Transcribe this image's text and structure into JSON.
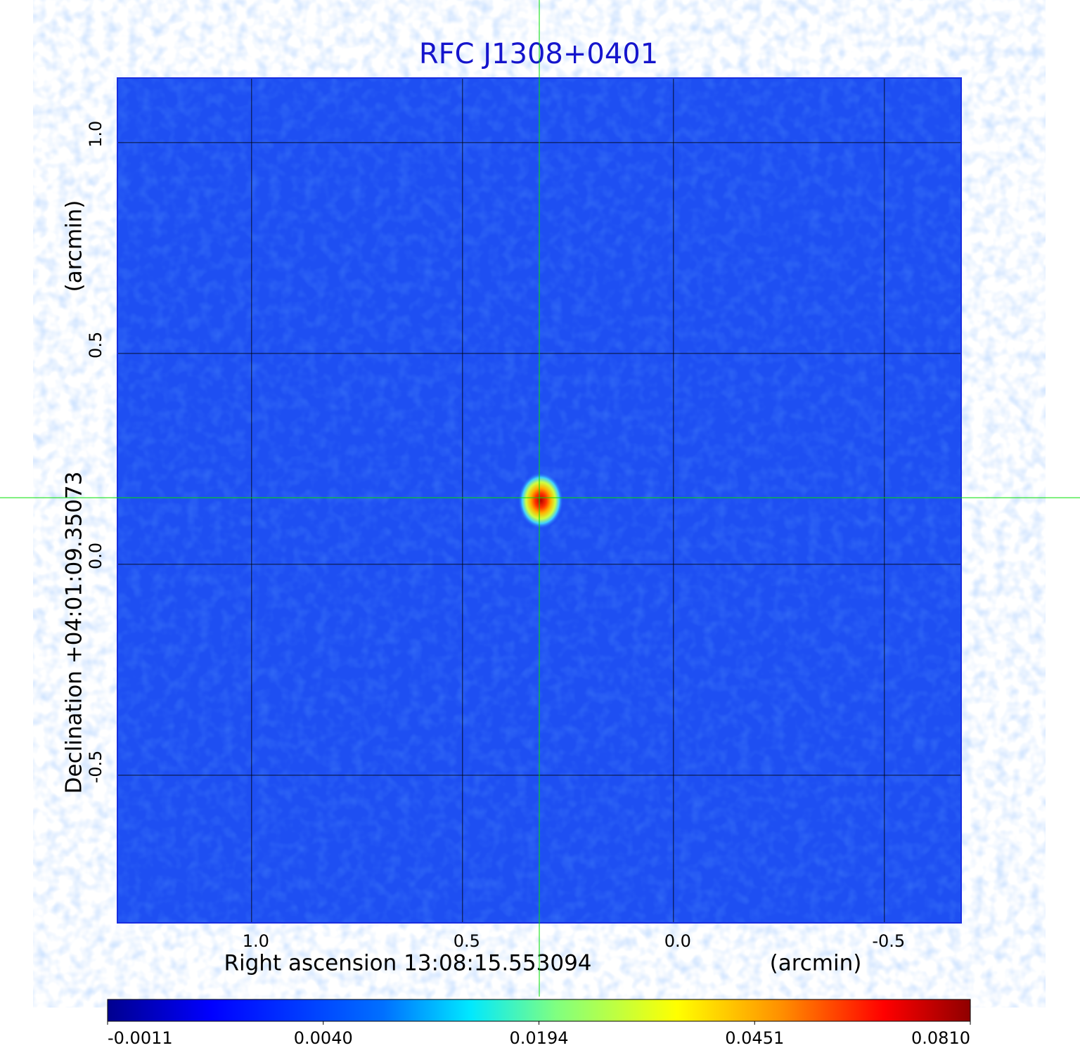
{
  "chart_data": {
    "type": "heatmap",
    "title": "RFC J1308+0401",
    "xlabel": "Right ascension  13:08:15.553094",
    "xunit": "(arcmin)",
    "ylabel": "Declination  +04:01:09.35073",
    "yunit": "(arcmin)",
    "xlim": [
      1.318,
      -0.682
    ],
    "ylim": [
      -0.85,
      1.153
    ],
    "xticks": [
      {
        "value": 1,
        "label": "1.0"
      },
      0.5,
      {
        "value": 0,
        "label": "0.0"
      },
      -0.5
    ],
    "yticks": [
      -0.5,
      {
        "value": 0,
        "label": "0.0"
      },
      0.5,
      {
        "value": 1,
        "label": "1.0"
      }
    ],
    "grid": true,
    "crosshair": {
      "x": 0.318,
      "y": 0.158
    },
    "colorbar_ticks": [
      -0.0011,
      {
        "value": 0.004,
        "label": "0.0040"
      },
      0.0194,
      0.0451,
      {
        "value": 0.081,
        "label": "0.0810"
      }
    ]
  }
}
